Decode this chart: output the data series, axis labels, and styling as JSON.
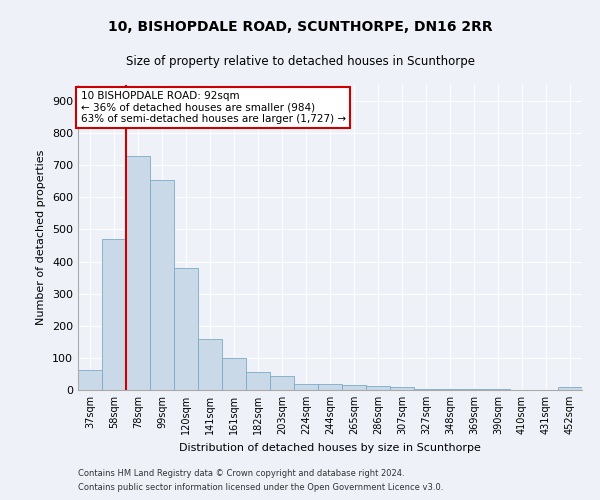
{
  "title": "10, BISHOPDALE ROAD, SCUNTHORPE, DN16 2RR",
  "subtitle": "Size of property relative to detached houses in Scunthorpe",
  "xlabel": "Distribution of detached houses by size in Scunthorpe",
  "ylabel": "Number of detached properties",
  "categories": [
    "37sqm",
    "58sqm",
    "78sqm",
    "99sqm",
    "120sqm",
    "141sqm",
    "161sqm",
    "182sqm",
    "203sqm",
    "224sqm",
    "244sqm",
    "265sqm",
    "286sqm",
    "307sqm",
    "327sqm",
    "348sqm",
    "369sqm",
    "390sqm",
    "410sqm",
    "431sqm",
    "452sqm"
  ],
  "values": [
    62,
    470,
    730,
    655,
    380,
    160,
    100,
    55,
    45,
    20,
    18,
    16,
    14,
    10,
    4,
    4,
    2,
    2,
    1,
    0,
    8
  ],
  "bar_color": "#c9d9e8",
  "bar_edge_color": "#7aaac8",
  "property_size_label": "10 BISHOPDALE ROAD: 92sqm",
  "annotation_line1": "← 36% of detached houses are smaller (984)",
  "annotation_line2": "63% of semi-detached houses are larger (1,727) →",
  "vline_color": "#cc0000",
  "vline_x_index": 1.5,
  "annotation_box_color": "#ffffff",
  "annotation_box_edge": "#cc0000",
  "ylim": [
    0,
    950
  ],
  "yticks": [
    0,
    100,
    200,
    300,
    400,
    500,
    600,
    700,
    800,
    900
  ],
  "footer1": "Contains HM Land Registry data © Crown copyright and database right 2024.",
  "footer2": "Contains public sector information licensed under the Open Government Licence v3.0.",
  "bg_color": "#eef2f8",
  "plot_bg_color": "#eef2f8"
}
